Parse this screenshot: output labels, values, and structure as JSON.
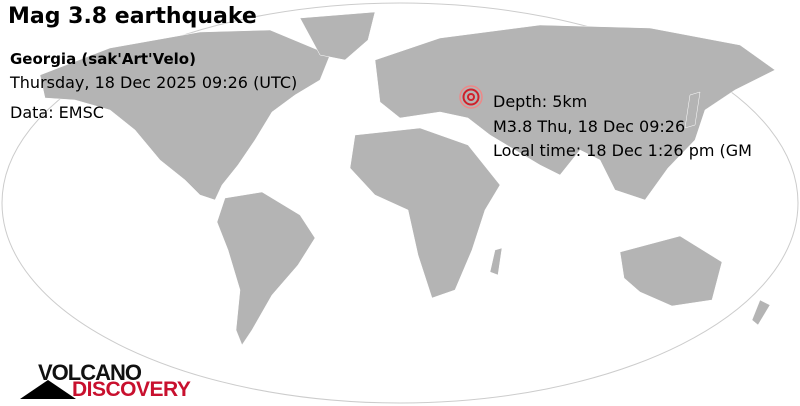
{
  "title": "Mag 3.8 earthquake",
  "region": "Georgia (sak'Art'Velo)",
  "datetime": "Thursday, 18 Dec 2025 09:26 (UTC)",
  "source": "Data: EMSC",
  "info": {
    "depth": "Depth: 5km",
    "magnitude_time": "M3.8 Thu, 18 Dec 09:26",
    "local_time": "Local time: 18 Dec 1:26 pm (GM"
  },
  "logo": {
    "line1": "VOLCANO",
    "line2": "DISCOVERY"
  },
  "colors": {
    "land": "#b4b4b4",
    "ocean": "#ffffff",
    "epicenter": "#d0202a",
    "logo_red": "#c8102e"
  },
  "icons": {
    "epicenter": "epicenter-target-icon"
  }
}
